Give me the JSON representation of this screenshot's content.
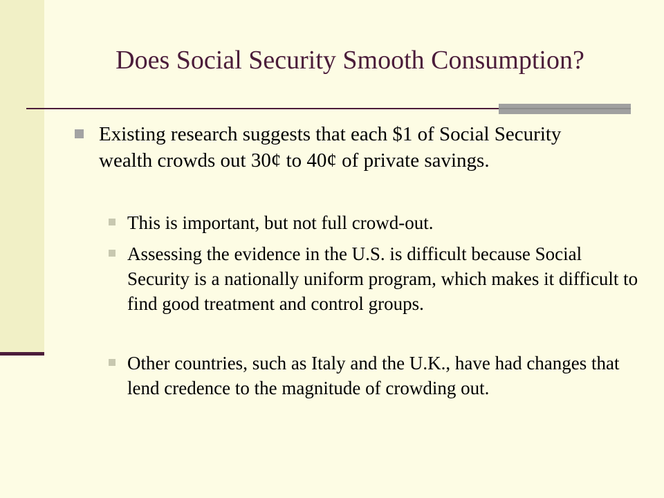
{
  "slide": {
    "title": "Does Social Security Smooth Consumption?",
    "bullets": [
      {
        "text": "Existing research suggests that each $1 of Social Security wealth crowds out 30¢ to 40¢ of private savings.",
        "sub_bullets": [
          "This is important, but not full crowd-out.",
          "Assessing the evidence in the U.S. is difficult because Social Security is a nationally uniform program, which makes it difficult to find good treatment and control groups.",
          "Other countries, such as Italy and the U.K., have had changes that lend credence to the magnitude of crowding out."
        ]
      }
    ]
  },
  "theme": {
    "background": "#fdfce4",
    "band": "#f1f0c6",
    "accent": "#4b1c3a",
    "rule_bar": "#a0a0a0"
  }
}
